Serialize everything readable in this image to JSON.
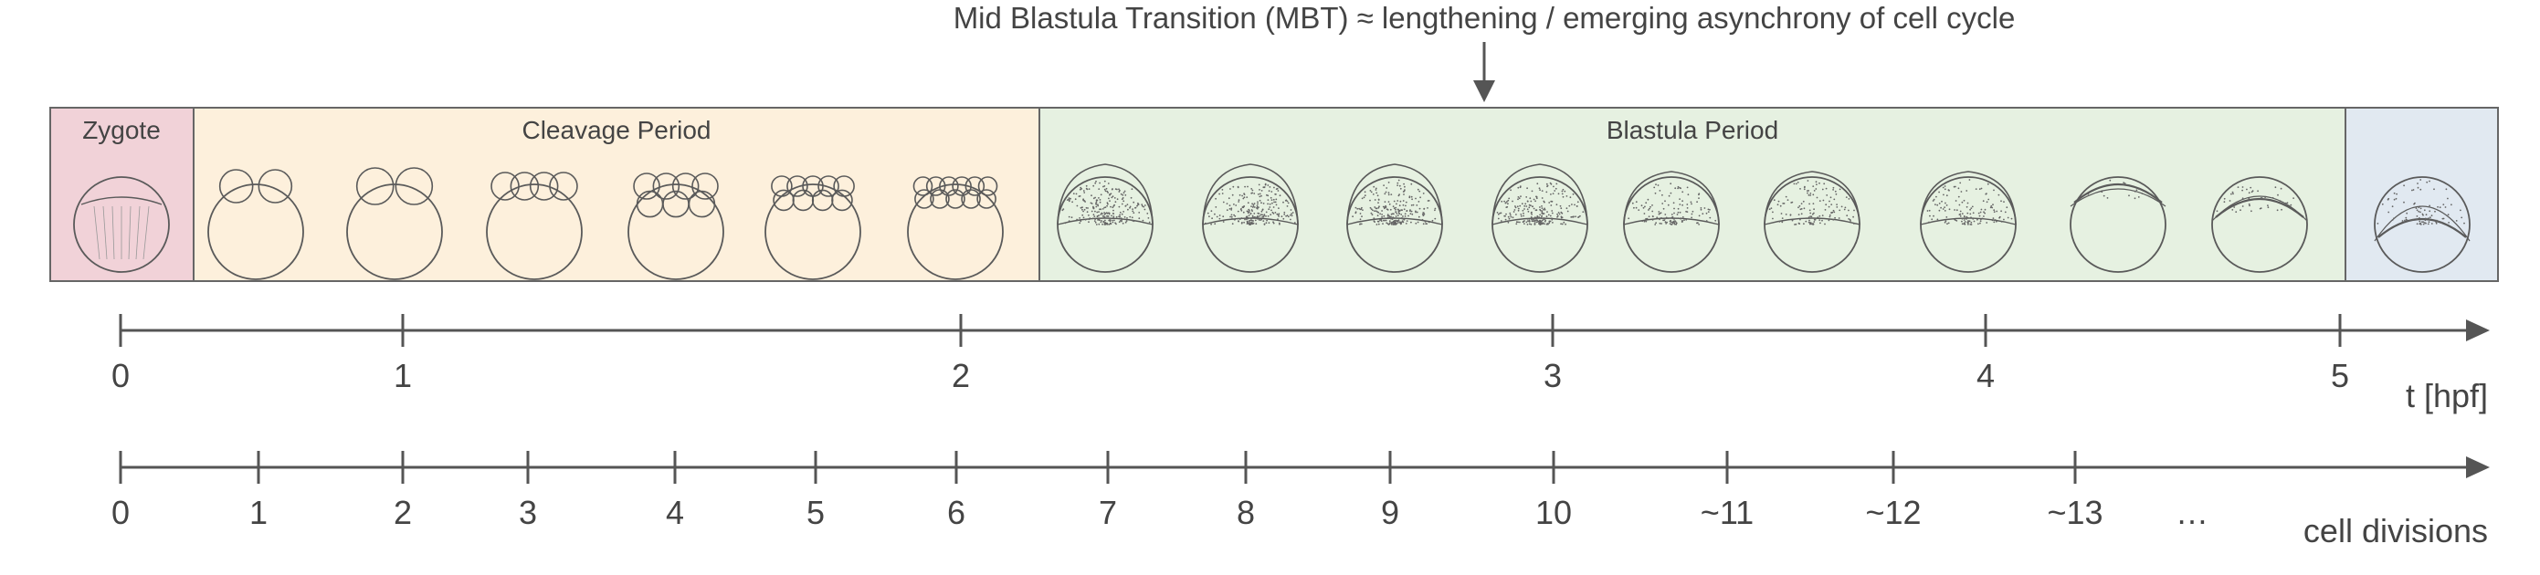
{
  "header": {
    "mbt_label": "Mid Blastula Transition (MBT) ≈ lengthening / emerging asynchrony of cell cycle"
  },
  "periods": [
    {
      "label": "Zygote",
      "color": "#f1d2d8"
    },
    {
      "label": "Cleavage Period",
      "color": "#fdf0dc"
    },
    {
      "label": "Blastula Period",
      "color": "#e6f1e1"
    },
    {
      "label": "",
      "color": "#e1e9f1"
    }
  ],
  "embryo_stages": [
    "zygote-1-cell",
    "cleavage-2-cell",
    "cleavage-4-cell",
    "cleavage-8-cell",
    "cleavage-16-cell",
    "cleavage-32-cell",
    "cleavage-64-cell",
    "blastula-128-cell",
    "blastula-256-cell",
    "blastula-512-cell",
    "blastula-1k-cell",
    "blastula-high",
    "blastula-oblong",
    "blastula-sphere",
    "blastula-dome",
    "blastula-30pct-epiboly",
    "gastrula"
  ],
  "time_axis": {
    "unit_label": "t [hpf]",
    "ticks": [
      "0",
      "1",
      "2",
      "3",
      "4",
      "5"
    ]
  },
  "division_axis": {
    "unit_label": "cell divisions",
    "ticks": [
      "0",
      "1",
      "2",
      "3",
      "4",
      "5",
      "6",
      "7",
      "8",
      "9",
      "10",
      "~11",
      "~12",
      "~13",
      "…"
    ]
  }
}
